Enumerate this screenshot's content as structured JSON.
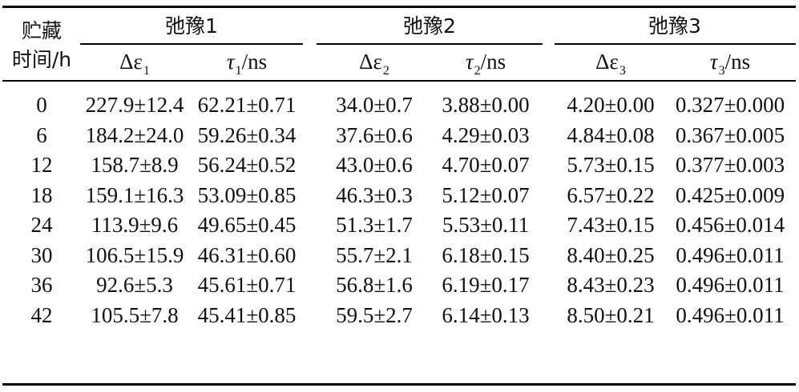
{
  "table": {
    "stub_header": [
      "贮藏",
      "时间/h"
    ],
    "groups": [
      {
        "label": "弛豫1",
        "cols": [
          {
            "sym": "Δε",
            "sub": "1",
            "unit": ""
          },
          {
            "sym": "τ",
            "sub": "1",
            "unit": "/ns"
          }
        ]
      },
      {
        "label": "弛豫2",
        "cols": [
          {
            "sym": "Δε",
            "sub": "2",
            "unit": ""
          },
          {
            "sym": "τ",
            "sub": "2",
            "unit": "/ns"
          }
        ]
      },
      {
        "label": "弛豫3",
        "cols": [
          {
            "sym": "Δε",
            "sub": "3",
            "unit": ""
          },
          {
            "sym": "τ",
            "sub": "3",
            "unit": "/ns"
          }
        ]
      }
    ],
    "rows": [
      [
        "0",
        "227.9±12.4",
        "62.21±0.71",
        "34.0±0.7",
        "3.88±0.00",
        "4.20±0.00",
        "0.327±0.000"
      ],
      [
        "6",
        "184.2±24.0",
        "59.26±0.34",
        "37.6±0.6",
        "4.29±0.03",
        "4.84±0.08",
        "0.367±0.005"
      ],
      [
        "12",
        "158.7±8.9",
        "56.24±0.52",
        "43.0±0.6",
        "4.70±0.07",
        "5.73±0.15",
        "0.377±0.003"
      ],
      [
        "18",
        "159.1±16.3",
        "53.09±0.85",
        "46.3±0.3",
        "5.12±0.07",
        "6.57±0.22",
        "0.425±0.009"
      ],
      [
        "24",
        "113.9±9.6",
        "49.65±0.45",
        "51.3±1.7",
        "5.53±0.11",
        "7.43±0.15",
        "0.456±0.014"
      ],
      [
        "30",
        "106.5±15.9",
        "46.31±0.60",
        "55.7±2.1",
        "6.18±0.15",
        "8.40±0.25",
        "0.496±0.011"
      ],
      [
        "36",
        "92.6±5.3",
        "45.61±0.71",
        "56.8±1.6",
        "6.19±0.17",
        "8.43±0.23",
        "0.496±0.011"
      ],
      [
        "42",
        "105.5±7.8",
        "45.41±0.85",
        "59.5±2.7",
        "6.14±0.13",
        "8.50±0.21",
        "0.496±0.011"
      ]
    ]
  }
}
